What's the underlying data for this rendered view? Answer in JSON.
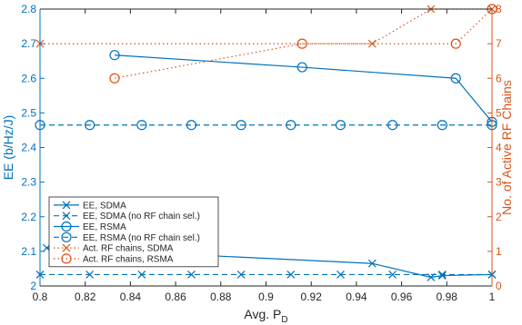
{
  "chart_data": {
    "type": "line",
    "xlabel_main": "Avg. P",
    "xlabel_sub": "D",
    "ylabel_left": "EE (b/Hz/J)",
    "ylabel_right": "No. of Active RF Chains",
    "xlim": [
      0.8,
      1.0
    ],
    "ylim_left": [
      2.0,
      2.8
    ],
    "ylim_right": [
      0,
      8
    ],
    "x_ticks": [
      0.8,
      0.82,
      0.84,
      0.86,
      0.88,
      0.9,
      0.92,
      0.94,
      0.96,
      0.98,
      1.0
    ],
    "x_tick_labels": [
      "0.8",
      "0.82",
      "0.84",
      "0.86",
      "0.88",
      "0.9",
      "0.92",
      "0.94",
      "0.96",
      "0.98",
      "1"
    ],
    "y_left_ticks": [
      2.0,
      2.1,
      2.2,
      2.3,
      2.4,
      2.5,
      2.6,
      2.7,
      2.8
    ],
    "y_left_tick_labels": [
      "2",
      "2.1",
      "2.2",
      "2.3",
      "2.4",
      "2.5",
      "2.6",
      "2.7",
      "2.8"
    ],
    "y_right_ticks": [
      0,
      1,
      2,
      3,
      4,
      5,
      6,
      7,
      8
    ],
    "y_right_tick_labels": [
      "0",
      "1",
      "2",
      "3",
      "4",
      "5",
      "6",
      "7",
      "8"
    ],
    "colors": {
      "blue": "#0072BD",
      "orange": "#D95319",
      "axis": "#262626"
    },
    "series": [
      {
        "name": "EE, SDMA",
        "axis": "left",
        "color": "#0072BD",
        "marker": "x",
        "dash": "solid",
        "x": [
          0.803,
          0.947,
          0.973,
          0.978,
          1.0
        ],
        "y": [
          2.11,
          2.065,
          2.025,
          2.03,
          2.033
        ]
      },
      {
        "name": "EE, SDMA (no RF chain sel.)",
        "axis": "left",
        "color": "#0072BD",
        "marker": "x",
        "dash": "dashed",
        "x": [
          0.8,
          0.822,
          0.845,
          0.867,
          0.889,
          0.911,
          0.933,
          0.956,
          0.978,
          1.0
        ],
        "y": [
          2.033,
          2.033,
          2.033,
          2.033,
          2.033,
          2.033,
          2.033,
          2.033,
          2.033,
          2.033
        ]
      },
      {
        "name": "EE, RSMA",
        "axis": "left",
        "color": "#0072BD",
        "marker": "o",
        "dash": "solid",
        "x": [
          0.833,
          0.916,
          0.984,
          1.0
        ],
        "y": [
          2.667,
          2.632,
          2.6,
          2.474
        ]
      },
      {
        "name": "EE, RSMA (no RF chain sel.)",
        "axis": "left",
        "color": "#0072BD",
        "marker": "o",
        "dash": "dashed",
        "x": [
          0.8,
          0.822,
          0.845,
          0.867,
          0.889,
          0.911,
          0.933,
          0.956,
          0.978,
          1.0
        ],
        "y": [
          2.465,
          2.465,
          2.465,
          2.465,
          2.465,
          2.465,
          2.465,
          2.465,
          2.465,
          2.465
        ]
      },
      {
        "name": "Act. RF chains, SDMA",
        "axis": "right",
        "color": "#D95319",
        "marker": "x",
        "dash": "dotted",
        "x": [
          0.8,
          0.947,
          0.973,
          1.0
        ],
        "y": [
          7,
          7,
          8,
          8
        ]
      },
      {
        "name": "Act. RF chains, RSMA",
        "axis": "right",
        "color": "#D95319",
        "marker": "o",
        "dash": "dotted",
        "x": [
          0.833,
          0.916,
          0.984,
          1.0
        ],
        "y": [
          6,
          7,
          7,
          8
        ]
      }
    ],
    "legend_position": "lower-left"
  }
}
